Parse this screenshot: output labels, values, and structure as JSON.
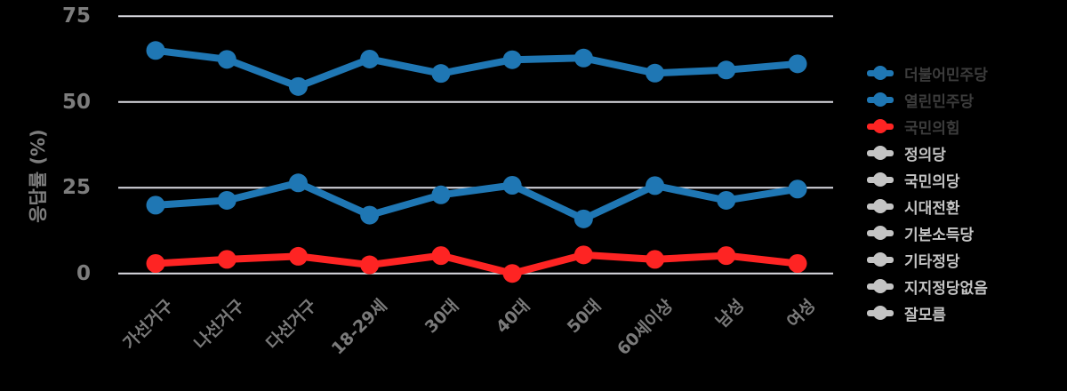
{
  "chart_data": {
    "type": "line",
    "title": "",
    "ylabel": "응답률 (%)",
    "xlabel": "",
    "ylim": [
      0,
      75
    ],
    "yticks": [
      0,
      25,
      50,
      75
    ],
    "grid": "horizontal-only",
    "grid_color": "#dcdce4",
    "background_color": "#000000",
    "tick_label_color": "#7a7a7a",
    "legend_position": "right",
    "legend_active_text_color": "#3c3c3c",
    "legend_inactive_text_color": "#c4c4c4",
    "categories": [
      "가선거구",
      "나선거구",
      "다선거구",
      "18-29세",
      "30대",
      "40대",
      "50대",
      "60세이상",
      "남성",
      "여성"
    ],
    "series": [
      {
        "name": "더불어민주당",
        "color": "#1f77b4",
        "visible": true,
        "values": [
          65.0,
          62.4,
          54.5,
          62.5,
          58.3,
          62.3,
          62.8,
          58.4,
          59.3,
          61.1
        ]
      },
      {
        "name": "열린민주당",
        "color": "#1f77b4",
        "visible": true,
        "values": [
          19.9,
          21.3,
          26.4,
          17.0,
          22.9,
          25.7,
          15.9,
          25.6,
          21.3,
          24.6
        ]
      },
      {
        "name": "국민의힘",
        "color": "#fe2423",
        "visible": true,
        "values": [
          2.9,
          4.1,
          5.0,
          2.5,
          5.2,
          0.0,
          5.4,
          4.1,
          5.2,
          2.9
        ]
      },
      {
        "name": "정의당",
        "color": "#c4c4c4",
        "visible": false,
        "values": []
      },
      {
        "name": "국민의당",
        "color": "#c4c4c4",
        "visible": false,
        "values": []
      },
      {
        "name": "시대전환",
        "color": "#c4c4c4",
        "visible": false,
        "values": []
      },
      {
        "name": "기본소득당",
        "color": "#c4c4c4",
        "visible": false,
        "values": []
      },
      {
        "name": "기타정당",
        "color": "#c4c4c4",
        "visible": false,
        "values": []
      },
      {
        "name": "지지정당없음",
        "color": "#c4c4c4",
        "visible": false,
        "values": []
      },
      {
        "name": "잘모름",
        "color": "#c4c4c4",
        "visible": false,
        "values": []
      }
    ]
  }
}
